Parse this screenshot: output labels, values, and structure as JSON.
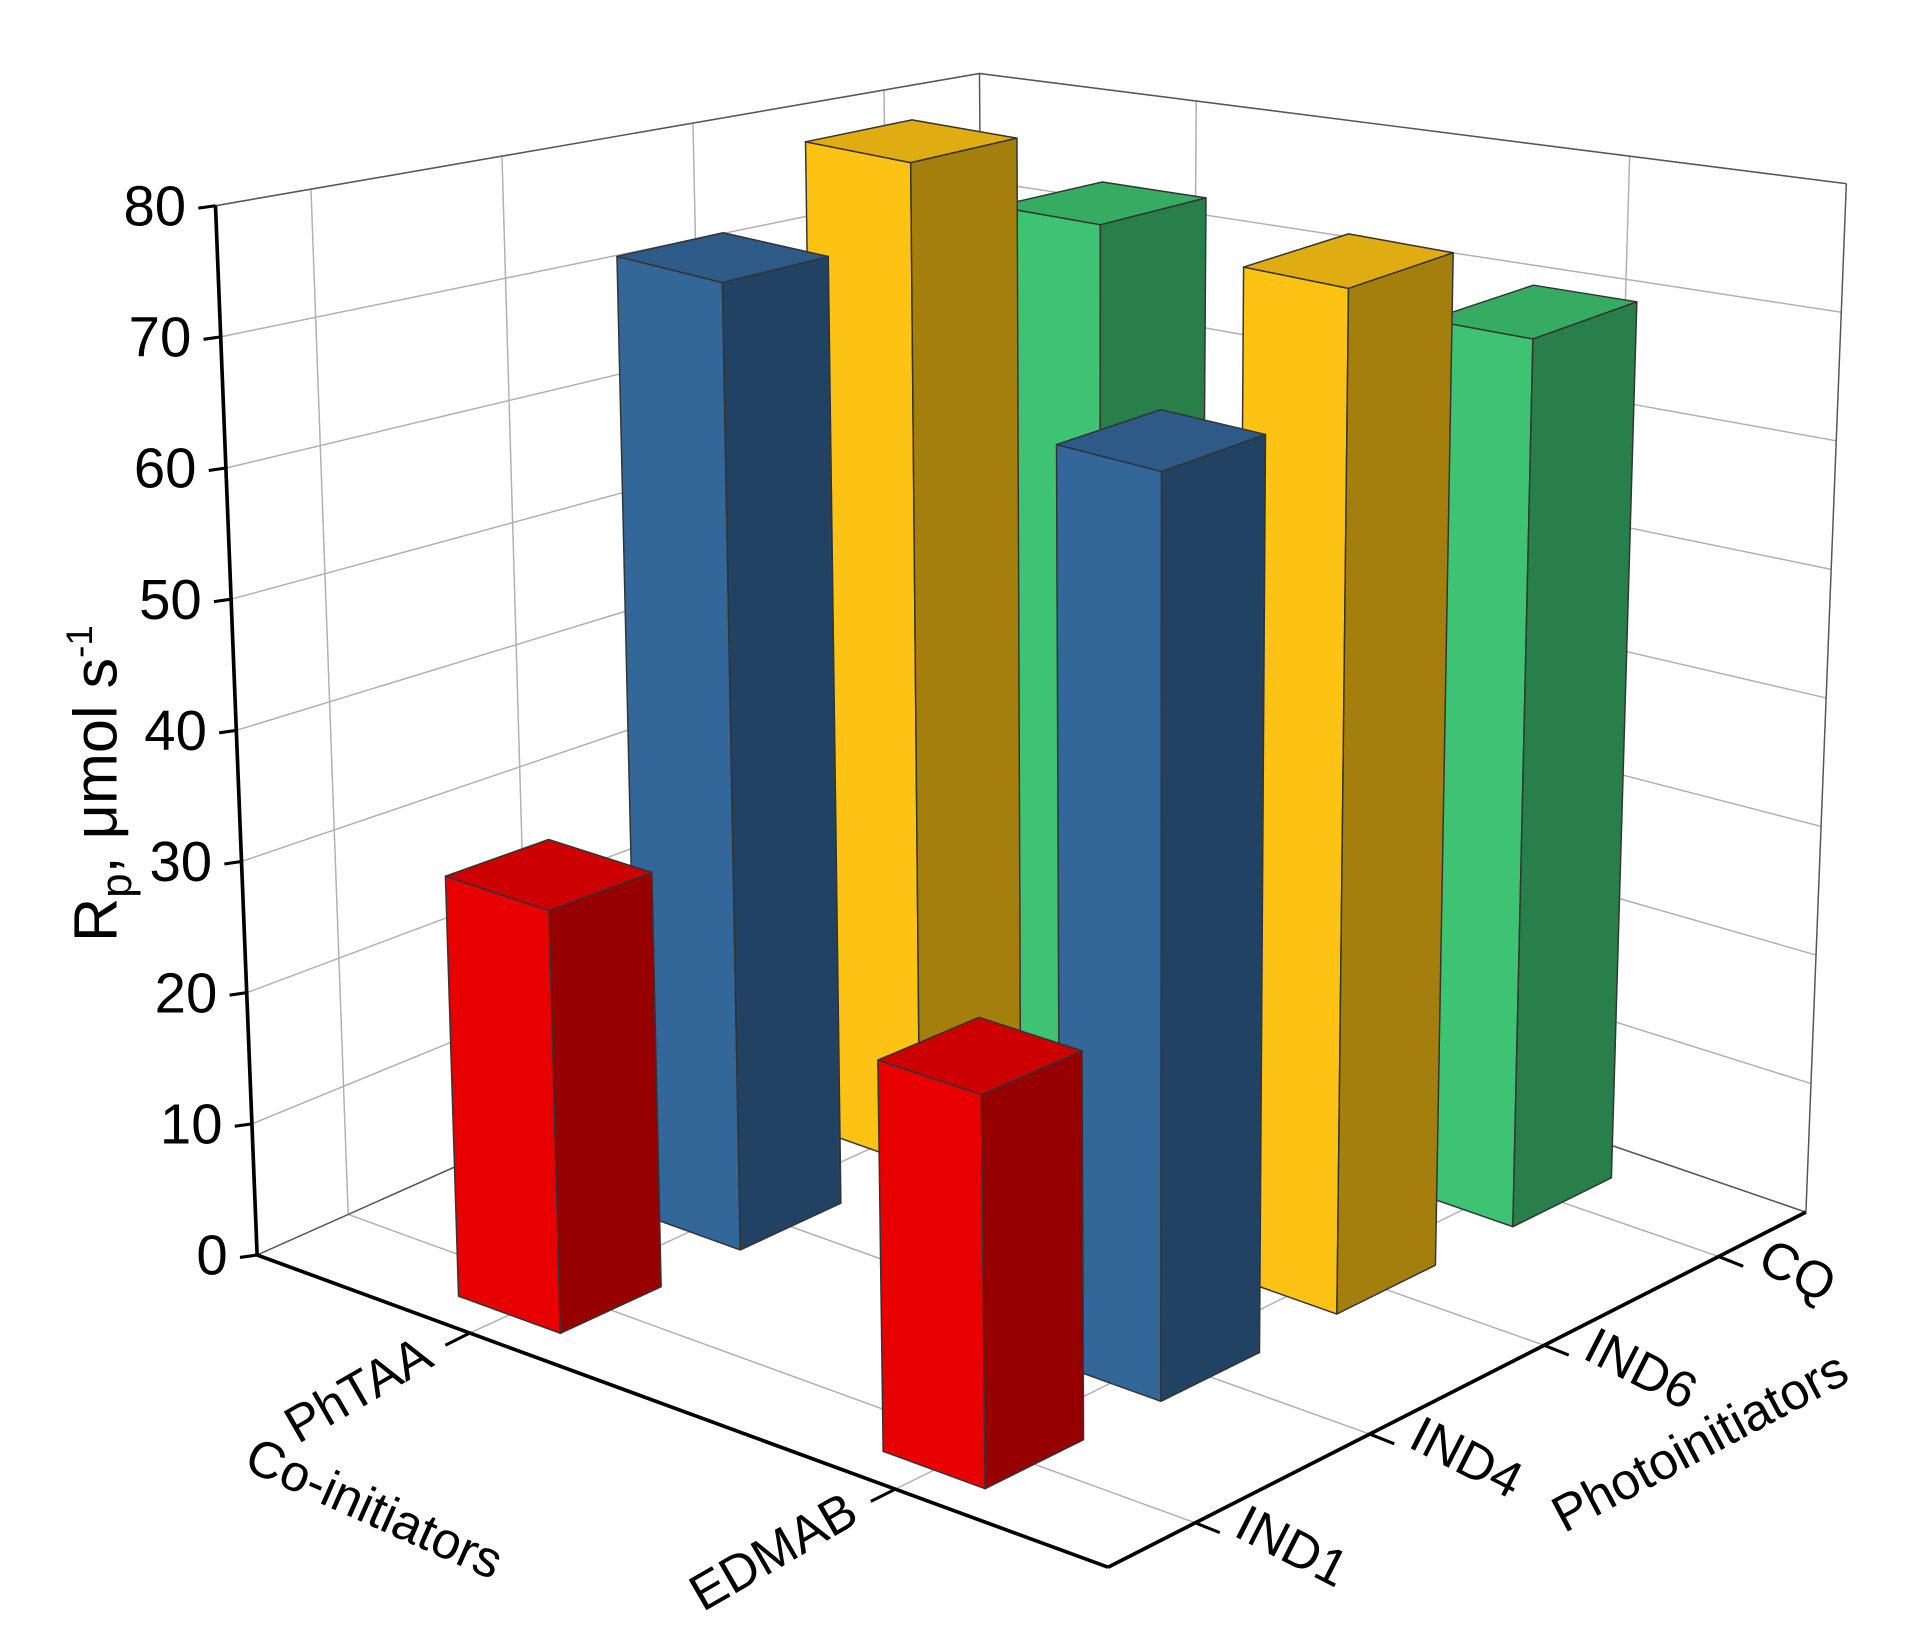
{
  "chart_data": {
    "type": "bar3d",
    "ylabel": [
      "R",
      "p",
      ", μmol s",
      "-1"
    ],
    "xlabel": "Co-initiators",
    "zlabel": "Photoinitiators",
    "categories": [
      "PhTAA",
      "EDMAB"
    ],
    "series": [
      {
        "name": "IND1",
        "color": "#e80000",
        "values": [
          32,
          29
        ]
      },
      {
        "name": "IND4",
        "color": "#336699",
        "values": [
          76,
          70
        ]
      },
      {
        "name": "IND6",
        "color": "#fdc314",
        "values": [
          82,
          79
        ]
      },
      {
        "name": "CQ",
        "color": "#3dc371",
        "values": [
          73,
          70
        ]
      }
    ],
    "ylim": [
      0,
      80
    ],
    "yticks": [
      0,
      10,
      20,
      30,
      40,
      50,
      60,
      70,
      80
    ],
    "grid": true
  }
}
